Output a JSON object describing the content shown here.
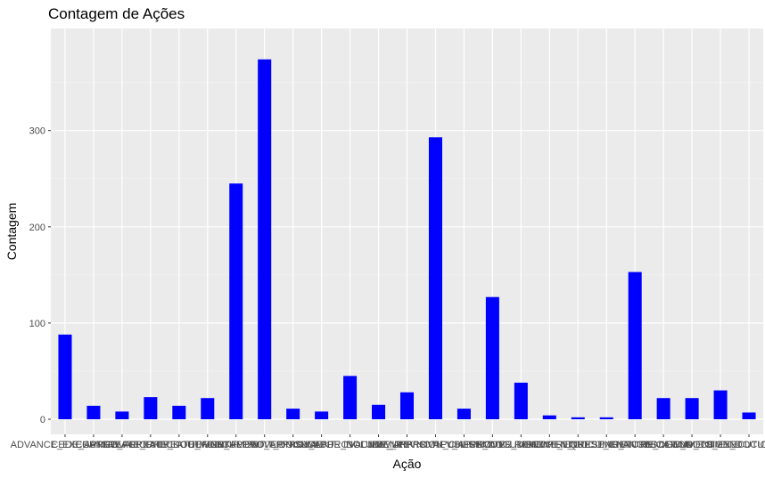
{
  "chart_data": {
    "type": "bar",
    "title": "Contagem de Ações",
    "xlabel": "Ação",
    "ylabel": "Contagem",
    "categories": [
      "ADVANCE_EXECUTION",
      "CEDE_APPROVAL",
      "CHANGE_PRIORITY",
      "CREATE_CHECKOUT",
      "CREATE_DOCUMENT",
      "CREATE_WORKFLOW",
      "DEFINE_APPROVER",
      "DOCUMENT_APPROVAL",
      "EDIT_DOCUMENT",
      "FINISH_APPROVAL",
      "INCLUDE_DOCUMENT",
      "INCLUDE_LINK",
      "INIT_APPROVAL",
      "NEW_REVISION_CHECKOUT",
      "NOTIFY_APPROVER",
      "PUBLISH_DOCUMENT",
      "REMOVE_DOCUMENT",
      "REMOVE_LINK",
      "REOPEN_DOCUMENT",
      "REQUEST_CHANGES",
      "RESEND_NOTIFICATION",
      "RETURN_DOCUMENT",
      "REVIEW_DOCUMENT",
      "SEND_TO_EXECUTION",
      "SIGN_DOCUMENT"
    ],
    "values": [
      88,
      14,
      8,
      23,
      14,
      22,
      245,
      374,
      11,
      8,
      45,
      15,
      28,
      293,
      11,
      127,
      38,
      4,
      2,
      2,
      153,
      22,
      22,
      30,
      7
    ],
    "ylim": [
      0,
      395
    ],
    "yticks": [
      0,
      100,
      200,
      300
    ],
    "bar_color": "#0000ff",
    "panel_background": "#ebebeb",
    "grid": true,
    "legend": "none"
  }
}
